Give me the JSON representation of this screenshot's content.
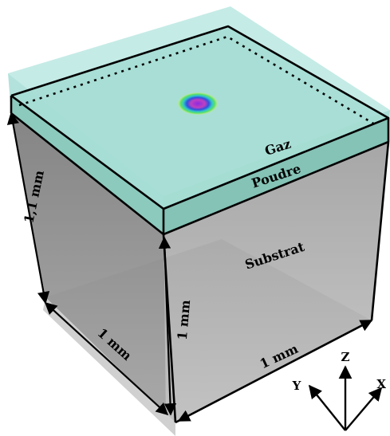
{
  "labels": {
    "gas": "Gaz",
    "powder": "Poudre",
    "substrate": "Substrat"
  },
  "dimensions": {
    "height": "1,1 mm",
    "depth": "1 mm",
    "vertical": "1 mm",
    "width": "1 mm"
  },
  "axes": {
    "x": "X",
    "y": "Y",
    "z": "Z"
  },
  "colors": {
    "gas": "#a8e2da",
    "powder": "#8fcbbf",
    "substrate": "#8c8c8c",
    "frame": "#000000"
  }
}
